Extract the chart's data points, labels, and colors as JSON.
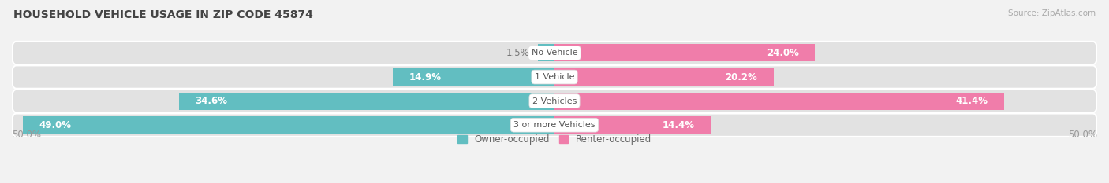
{
  "title": "HOUSEHOLD VEHICLE USAGE IN ZIP CODE 45874",
  "source": "Source: ZipAtlas.com",
  "categories": [
    "No Vehicle",
    "1 Vehicle",
    "2 Vehicles",
    "3 or more Vehicles"
  ],
  "owner_values": [
    1.5,
    14.9,
    34.6,
    49.0
  ],
  "renter_values": [
    24.0,
    20.2,
    41.4,
    14.4
  ],
  "owner_color": "#62bec1",
  "renter_color": "#f07daa",
  "bg_color": "#f2f2f2",
  "bar_bg_color": "#e2e2e2",
  "title_fontsize": 10,
  "source_fontsize": 7.5,
  "label_fontsize": 8.5,
  "cat_fontsize": 8,
  "axis_max": 50.0,
  "bar_height": 0.72,
  "legend_owner": "Owner-occupied",
  "legend_renter": "Renter-occupied",
  "x_tick_left": "50.0%",
  "x_tick_right": "50.0%"
}
